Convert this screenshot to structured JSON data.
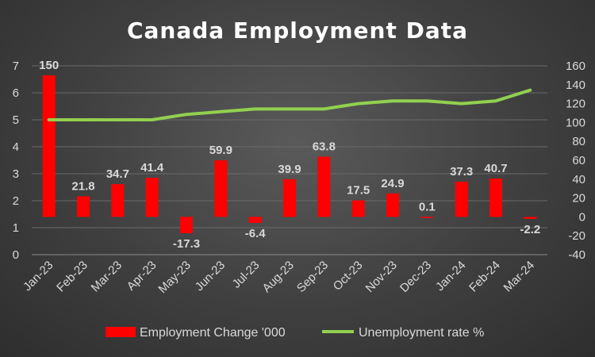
{
  "chart_data": {
    "title": "Canada Employment Data",
    "categories": [
      "Jan-23",
      "Feb-23",
      "Mar-23",
      "Apr-23",
      "May-23",
      "Jun-23",
      "Jul-23",
      "Aug-23",
      "Sep-23",
      "Oct-23",
      "Nov-23",
      "Dec-23",
      "Jan-24",
      "Feb-24",
      "Mar-24"
    ],
    "series": [
      {
        "name": "Employment Change '000",
        "type": "bar",
        "axis": "right",
        "color": "#ff0000",
        "values": [
          150,
          21.8,
          34.7,
          41.4,
          -17.3,
          59.9,
          -6.4,
          39.9,
          63.8,
          17.5,
          24.9,
          0.1,
          37.3,
          40.7,
          -2.2
        ],
        "labels": [
          "150",
          "21.8",
          "34.7",
          "41.4",
          "-17.3",
          "59.9",
          "-6.4",
          "39.9",
          "63.8",
          "17.5",
          "24.9",
          "0.1",
          "37.3",
          "40.7",
          "-2.2"
        ]
      },
      {
        "name": "Unemployment rate %",
        "type": "line",
        "axis": "left",
        "color": "#92d050",
        "values": [
          5.0,
          5.0,
          5.0,
          5.0,
          5.2,
          5.3,
          5.4,
          5.4,
          5.4,
          5.6,
          5.7,
          5.7,
          5.6,
          5.7,
          6.1
        ]
      }
    ],
    "y_left": {
      "min": 0,
      "max": 7,
      "ticks": [
        "0",
        "1",
        "2",
        "3",
        "4",
        "5",
        "6",
        "7"
      ]
    },
    "y_right": {
      "min": -40,
      "max": 160,
      "ticks": [
        "-40",
        "-20",
        "0",
        "20",
        "40",
        "60",
        "80",
        "100",
        "120",
        "140",
        "160"
      ]
    },
    "grid": true,
    "legend_position": "bottom"
  }
}
